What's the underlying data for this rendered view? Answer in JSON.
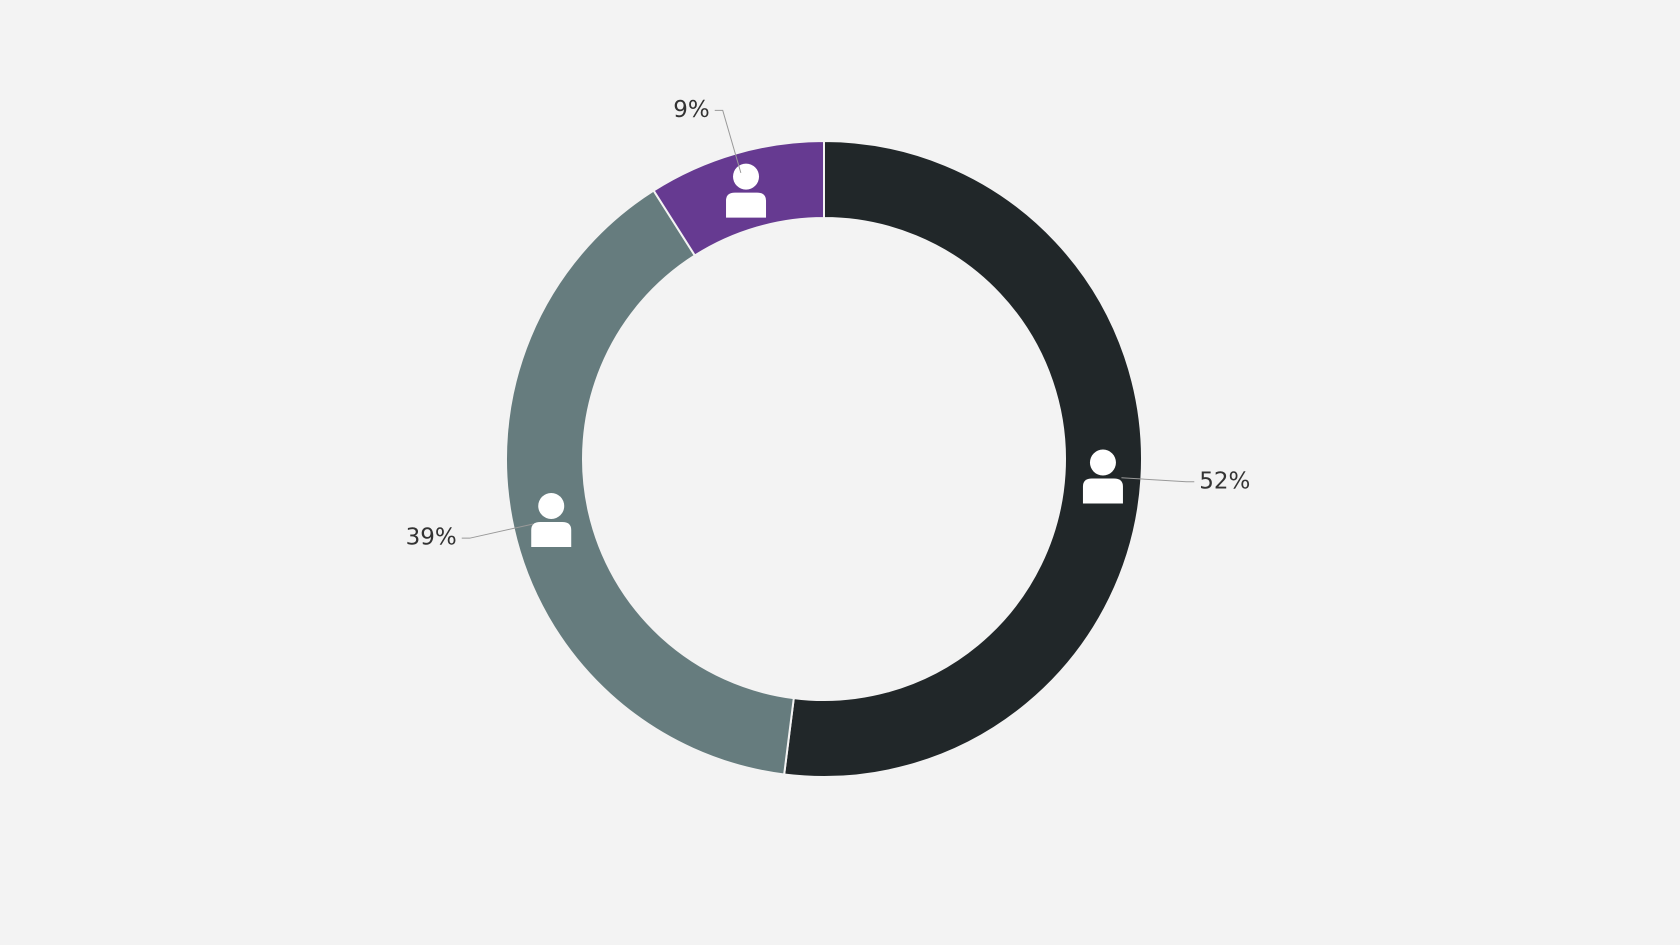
{
  "chart_data": {
    "type": "donut",
    "values": [
      52,
      39,
      9
    ],
    "value_labels": [
      "52%",
      "39%",
      "9%"
    ],
    "colors": [
      "#212729",
      "#667c7e",
      "#663a91"
    ]
  }
}
